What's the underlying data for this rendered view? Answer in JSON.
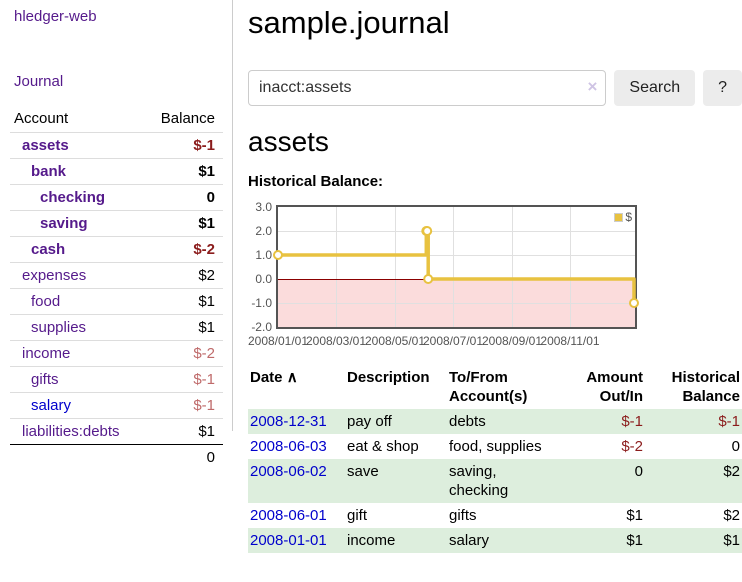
{
  "sidebar": {
    "app_title": "hledger-web",
    "nav_journal": "Journal",
    "accounts": {
      "headers": [
        "Account",
        "Balance"
      ],
      "rows": [
        {
          "account": "assets",
          "balance": "$-1"
        },
        {
          "account": "bank",
          "balance": "$1"
        },
        {
          "account": "checking",
          "balance": "0"
        },
        {
          "account": "saving",
          "balance": "$1"
        },
        {
          "account": "cash",
          "balance": "$-2"
        },
        {
          "account": "expenses",
          "balance": "$2"
        },
        {
          "account": "food",
          "balance": "$1"
        },
        {
          "account": "supplies",
          "balance": "$1"
        },
        {
          "account": "income",
          "balance": "$-2"
        },
        {
          "account": "gifts",
          "balance": "$-1"
        },
        {
          "account": "salary",
          "balance": "$-1"
        },
        {
          "account": "liabilities:debts",
          "balance": "$1"
        }
      ],
      "total": "0"
    }
  },
  "main": {
    "title": "sample.journal",
    "search": {
      "value": "inacct:assets",
      "button_label": "Search",
      "help_label": "?"
    },
    "icons": {
      "clear": "×",
      "sort_asc": "∧"
    },
    "account_heading": "assets",
    "chart_title": "Historical Balance:",
    "chart_data": {
      "type": "line",
      "step": true,
      "series": [
        {
          "name": "$",
          "color": "#e8c240",
          "points": [
            [
              "2008-01-01",
              1
            ],
            [
              "2008-06-01",
              2
            ],
            [
              "2008-06-02",
              2
            ],
            [
              "2008-06-03",
              0
            ],
            [
              "2008-12-31",
              -1
            ]
          ]
        }
      ],
      "x_range": [
        "2008-01-01",
        "2008-12-31"
      ],
      "ylim": [
        -2,
        3
      ],
      "y_ticks": [
        "3.0",
        "2.0",
        "1.0",
        "0.0",
        "-1.0",
        "-2.0"
      ],
      "x_ticks": [
        "2008/01/01",
        "2008/03/01",
        "2008/05/01",
        "2008/07/01",
        "2008/09/01",
        "2008/11/01"
      ],
      "legend_position": "top-right",
      "negative_region_color": "#fbdcdc",
      "zero_line_color": "#8b0000",
      "grid": true
    },
    "register": {
      "headers": {
        "date": "Date",
        "description": "Description",
        "accounts": "To/From Account(s)",
        "amount": "Amount Out/In",
        "balance": "Historical Balance"
      },
      "rows": [
        {
          "date": "2008-12-31",
          "description": "pay off",
          "accounts": "debts",
          "amount": "$-1",
          "balance": "$-1"
        },
        {
          "date": "2008-06-03",
          "description": "eat & shop",
          "accounts": "food, supplies",
          "amount": "$-2",
          "balance": "0"
        },
        {
          "date": "2008-06-02",
          "description": "save",
          "accounts": "saving,\nchecking",
          "amount": "0",
          "balance": "$2"
        },
        {
          "date": "2008-06-01",
          "description": "gift",
          "accounts": "gifts",
          "amount": "$1",
          "balance": "$2"
        },
        {
          "date": "2008-01-01",
          "description": "income",
          "accounts": "salary",
          "amount": "$1",
          "balance": "$1"
        }
      ]
    }
  }
}
